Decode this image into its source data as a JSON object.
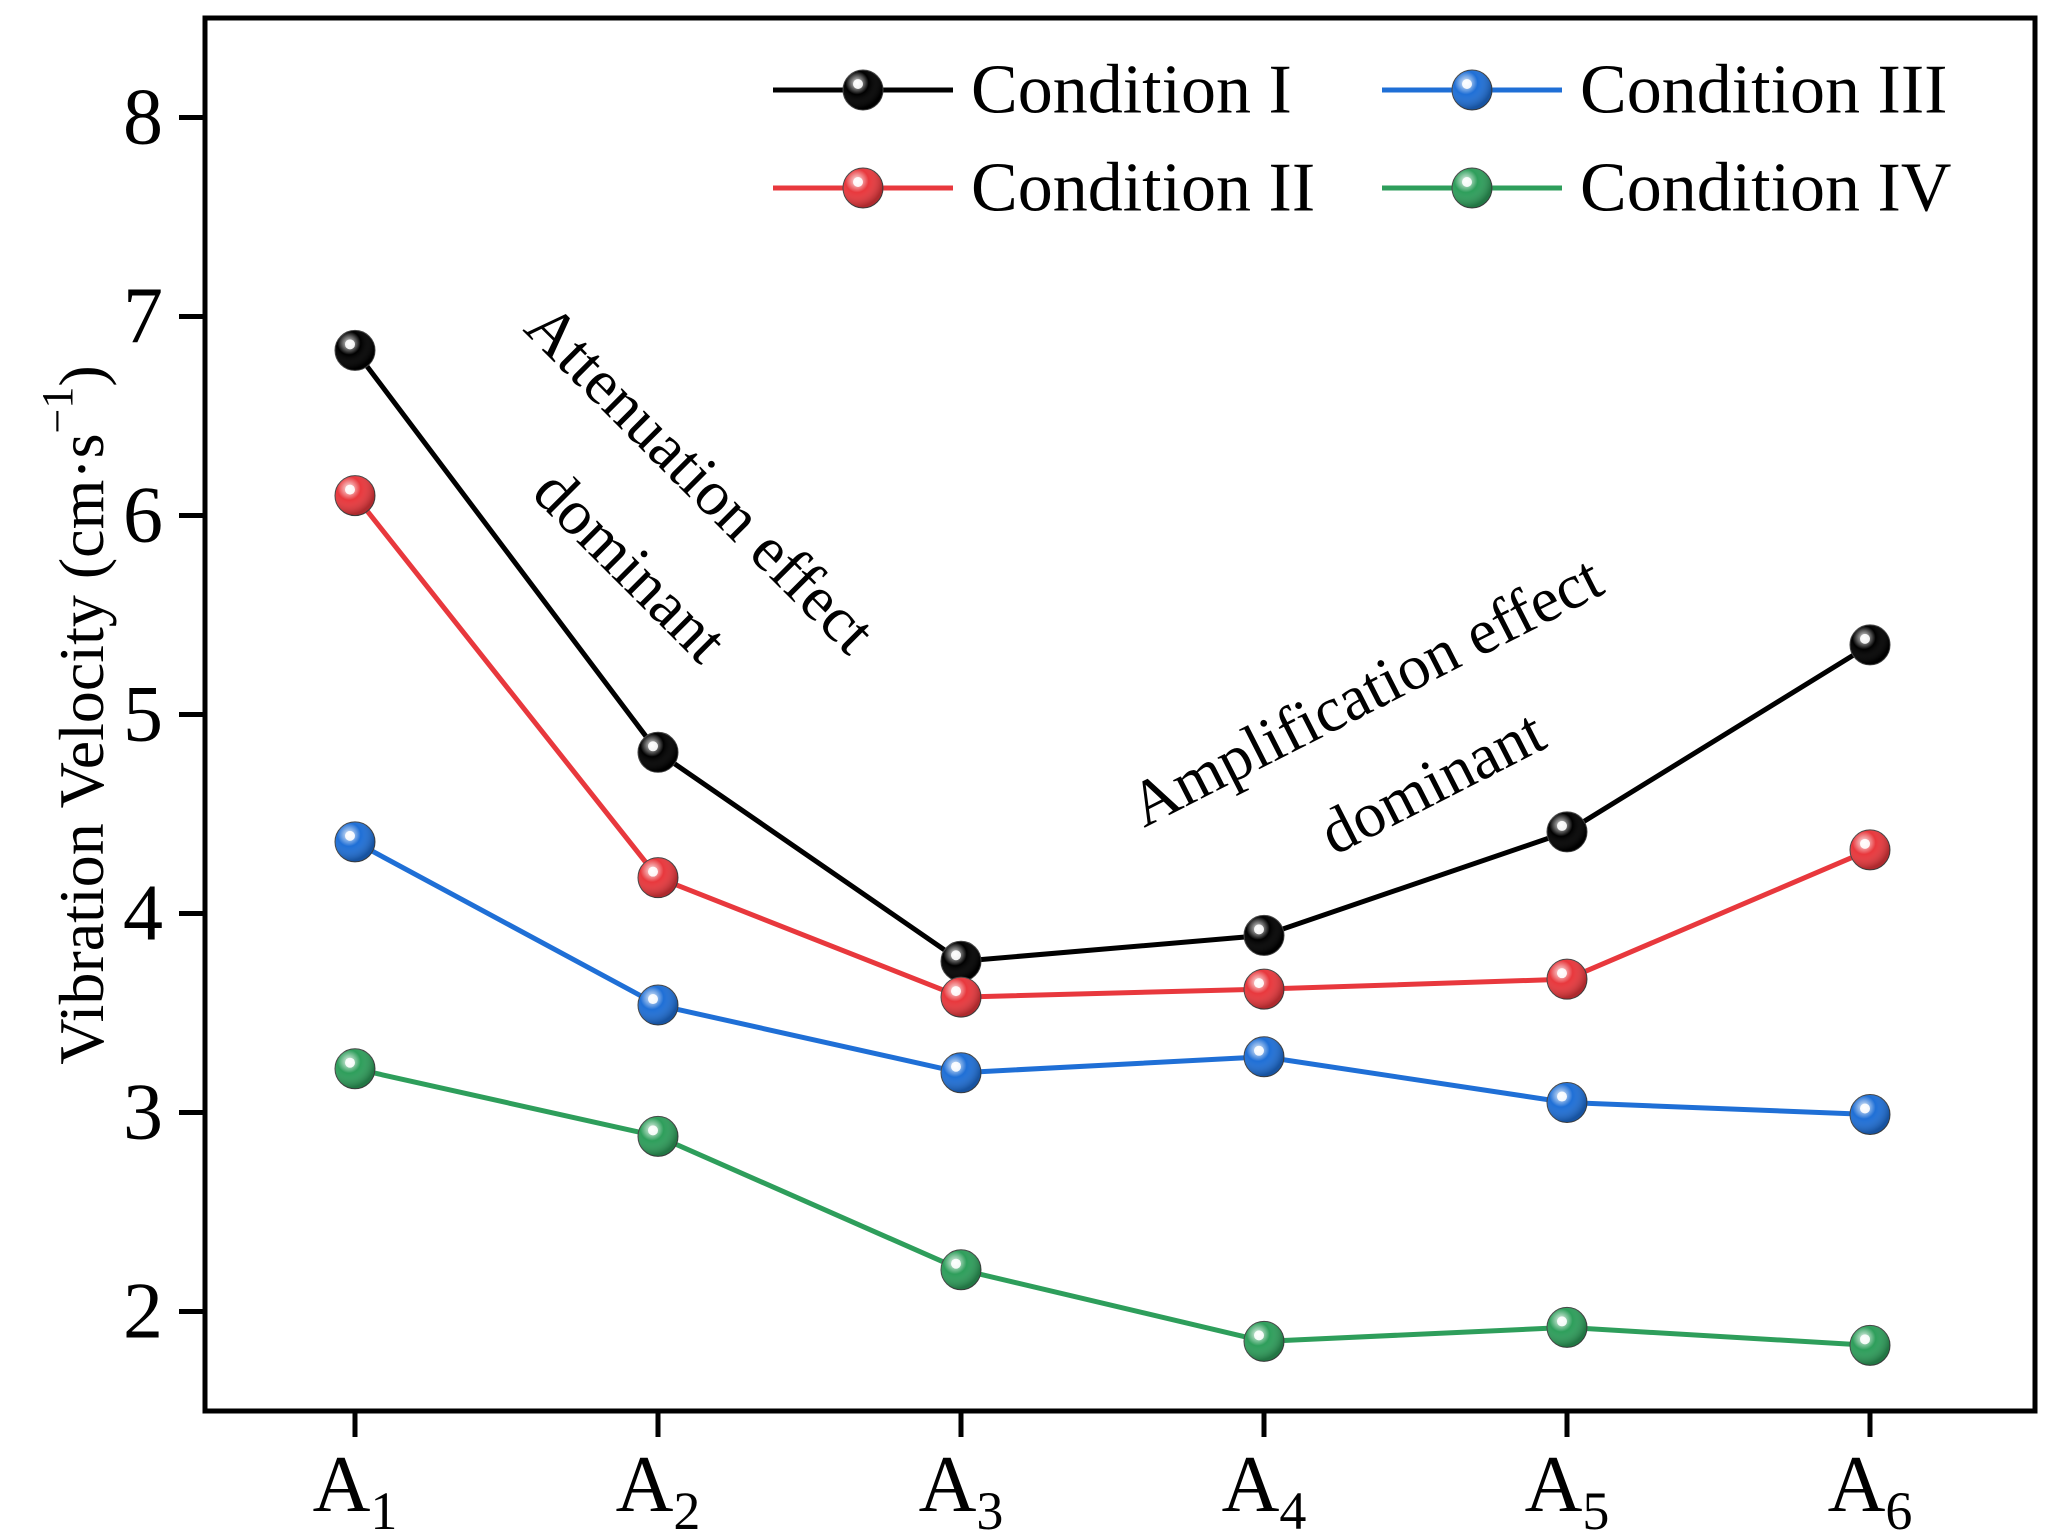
{
  "chart_data": {
    "type": "line",
    "title": "",
    "xlabel": "",
    "ylabel": "Vibration Velocity (cm·s",
    "ylabel_superscript": "−1",
    "ylabel_close": ")",
    "ylim": [
      1.5,
      8.5
    ],
    "yticks": [
      2,
      3,
      4,
      5,
      6,
      7,
      8
    ],
    "categories": [
      {
        "base": "A",
        "sub": "1"
      },
      {
        "base": "A",
        "sub": "2"
      },
      {
        "base": "A",
        "sub": "3"
      },
      {
        "base": "A",
        "sub": "4"
      },
      {
        "base": "A",
        "sub": "5"
      },
      {
        "base": "A",
        "sub": "6"
      }
    ],
    "series": [
      {
        "name": "Condition I",
        "color": "#000000",
        "values": [
          6.83,
          4.81,
          3.76,
          3.89,
          4.41,
          5.35
        ]
      },
      {
        "name": "Condition II",
        "color": "#e8383d",
        "values": [
          6.1,
          4.18,
          3.58,
          3.62,
          3.67,
          4.32
        ]
      },
      {
        "name": "Condition III",
        "color": "#1f6fd6",
        "values": [
          4.36,
          3.54,
          3.2,
          3.28,
          3.05,
          2.99
        ]
      },
      {
        "name": "Condition IV",
        "color": "#2e9e5b",
        "values": [
          3.22,
          2.88,
          2.21,
          1.85,
          1.92,
          1.83
        ]
      }
    ],
    "legend_location": "top-right",
    "grid": false,
    "annotations": [
      {
        "lines": [
          "Attenuation effect",
          "dominant"
        ],
        "rotation": 45
      },
      {
        "lines": [
          "Amplification effect",
          "dominant"
        ],
        "rotation": -27
      }
    ]
  }
}
